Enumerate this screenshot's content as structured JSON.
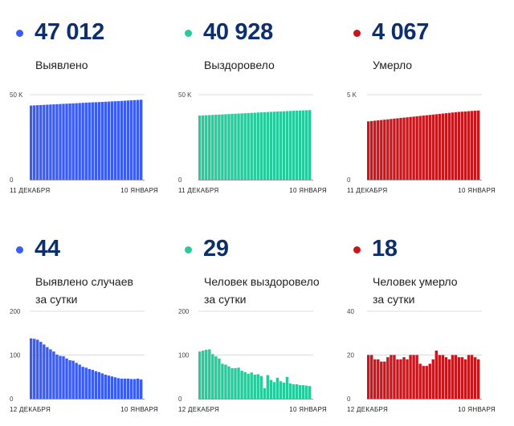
{
  "colors": {
    "blue": "#3a5cf4",
    "green": "#28ca9c",
    "red": "#c8161d",
    "number": "#0d2f6e"
  },
  "cards": [
    {
      "value": "47 012",
      "label": "Выявлено",
      "color": "#3a5cf4"
    },
    {
      "value": "40 928",
      "label": "Выздоровело",
      "color": "#28ca9c"
    },
    {
      "value": "4 067",
      "label": "Умерло",
      "color": "#c8161d"
    },
    {
      "value": "44",
      "label": "Выявлено случаев\nза сутки",
      "color": "#3a5cf4"
    },
    {
      "value": "29",
      "label": "Человек выздоровело\nза сутки",
      "color": "#28ca9c"
    },
    {
      "value": "18",
      "label": "Человек умерло\nза сутки",
      "color": "#c8161d"
    }
  ],
  "chart_data": [
    {
      "type": "bar",
      "title": "Выявлено",
      "ytick_labels": [
        "0",
        "50 K"
      ],
      "yticks": [
        0,
        50000
      ],
      "ylim": [
        0,
        50000
      ],
      "xtick_labels": [
        "11 ДЕКАБРЯ",
        "10 ЯНВАРЯ"
      ],
      "values": [
        43600,
        43700,
        43800,
        43900,
        44000,
        44100,
        44200,
        44300,
        44400,
        44500,
        44600,
        44700,
        44800,
        44900,
        45000,
        45100,
        45200,
        45300,
        45400,
        45500,
        45550,
        45650,
        45750,
        45850,
        45950,
        46050,
        46150,
        46250,
        46350,
        46450,
        46600,
        46700,
        46800,
        46900,
        47012
      ]
    },
    {
      "type": "bar",
      "title": "Выздоровело",
      "ytick_labels": [
        "0",
        "50 K"
      ],
      "yticks": [
        0,
        50000
      ],
      "ylim": [
        0,
        50000
      ],
      "xtick_labels": [
        "11 ДЕКАБРЯ",
        "10 ЯНВАРЯ"
      ],
      "values": [
        37700,
        37800,
        37900,
        38000,
        38100,
        38200,
        38300,
        38400,
        38500,
        38600,
        38700,
        38800,
        38900,
        39000,
        39100,
        39200,
        39300,
        39400,
        39500,
        39600,
        39700,
        39800,
        39900,
        40000,
        40100,
        40150,
        40250,
        40350,
        40450,
        40550,
        40650,
        40700,
        40780,
        40850,
        40928
      ]
    },
    {
      "type": "bar",
      "title": "Умерло",
      "ytick_labels": [
        "0",
        "5 K"
      ],
      "yticks": [
        0,
        5000
      ],
      "ylim": [
        0,
        5000
      ],
      "xtick_labels": [
        "11 ДЕКАБРЯ",
        "10 ЯНВАРЯ"
      ],
      "values": [
        3430,
        3450,
        3470,
        3490,
        3510,
        3530,
        3550,
        3570,
        3590,
        3610,
        3630,
        3650,
        3670,
        3690,
        3710,
        3730,
        3750,
        3770,
        3790,
        3810,
        3830,
        3850,
        3870,
        3890,
        3910,
        3930,
        3950,
        3970,
        3990,
        4000,
        4015,
        4030,
        4045,
        4055,
        4067
      ]
    },
    {
      "type": "bar",
      "title": "Выявлено случаев за сутки",
      "ytick_labels": [
        "0",
        "100",
        "200"
      ],
      "yticks": [
        0,
        100,
        200
      ],
      "ylim": [
        0,
        200
      ],
      "xtick_labels": [
        "12 ДЕКАБРЯ",
        "10 ЯНВАРЯ"
      ],
      "values": [
        138,
        137,
        135,
        130,
        124,
        118,
        113,
        108,
        101,
        98,
        97,
        92,
        88,
        87,
        82,
        78,
        73,
        71,
        68,
        66,
        63,
        61,
        58,
        55,
        53,
        51,
        49,
        47,
        46,
        46,
        46,
        45,
        45,
        46,
        44
      ]
    },
    {
      "type": "bar",
      "title": "Человек выздоровело за сутки",
      "ytick_labels": [
        "0",
        "100",
        "200"
      ],
      "yticks": [
        0,
        100,
        200
      ],
      "ylim": [
        0,
        200
      ],
      "xtick_labels": [
        "12 ДЕКАБРЯ",
        "10 ЯНВАРЯ"
      ],
      "values": [
        108,
        110,
        112,
        113,
        102,
        97,
        92,
        80,
        78,
        74,
        70,
        70,
        71,
        64,
        61,
        57,
        60,
        55,
        56,
        52,
        24,
        54,
        43,
        38,
        48,
        40,
        37,
        50,
        35,
        33,
        33,
        31,
        31,
        30,
        29
      ]
    },
    {
      "type": "bar",
      "title": "Человек умерло за сутки",
      "ytick_labels": [
        "0",
        "20",
        "40"
      ],
      "yticks": [
        0,
        20,
        40
      ],
      "ylim": [
        0,
        40
      ],
      "xtick_labels": [
        "12 ДЕКАБРЯ",
        "10 ЯНВАРЯ"
      ],
      "values": [
        20,
        20,
        18,
        18,
        17,
        17,
        19,
        20,
        20,
        18,
        18,
        19,
        18,
        20,
        20,
        20,
        16,
        15,
        15,
        16,
        18,
        22,
        20,
        20,
        19,
        18,
        20,
        20,
        19,
        19,
        18,
        20,
        20,
        19,
        18
      ]
    }
  ]
}
